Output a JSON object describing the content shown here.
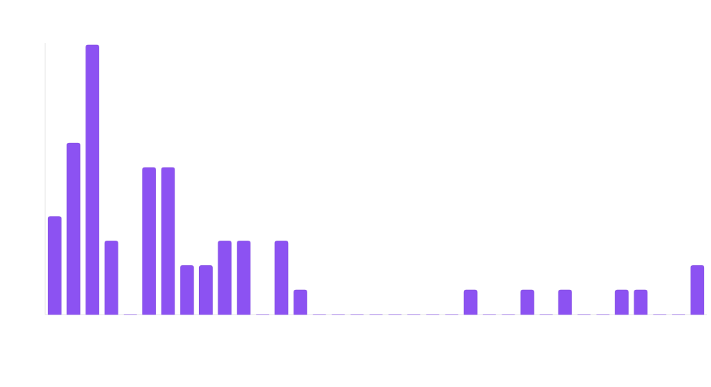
{
  "chart_data": {
    "type": "bar",
    "categories": [
      null,
      null,
      null,
      null,
      null,
      null,
      null,
      null,
      null,
      null,
      null,
      null,
      null,
      null,
      null,
      null,
      null,
      null,
      null,
      null,
      null,
      null,
      null,
      null,
      null,
      null,
      null,
      null,
      null,
      null,
      null,
      null,
      null,
      null,
      null
    ],
    "values": [
      4,
      7,
      11,
      3,
      0,
      6,
      6,
      2,
      2,
      3,
      3,
      0,
      3,
      1,
      0,
      0,
      0,
      0,
      0,
      0,
      0,
      0,
      1,
      0,
      0,
      1,
      0,
      1,
      0,
      0,
      1,
      1,
      0,
      0,
      2
    ],
    "color": "#8c52f2",
    "ylim": [
      0,
      11
    ]
  }
}
